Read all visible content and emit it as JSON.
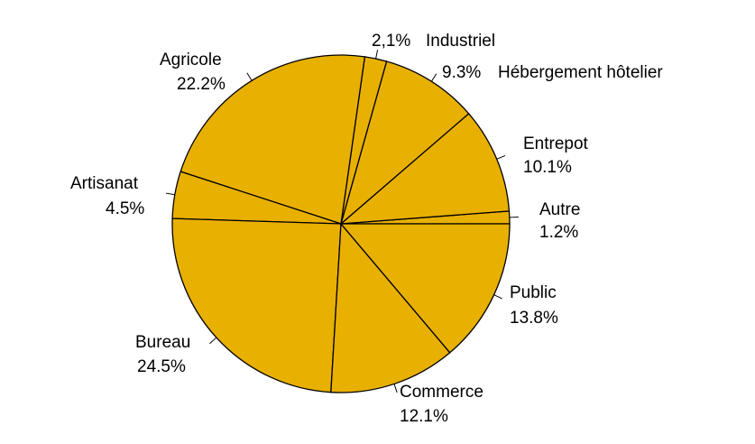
{
  "chart_data": {
    "type": "pie",
    "colors": {
      "slice": "#e8b000",
      "stroke": "#000000",
      "background": "#ffffff"
    },
    "slices": [
      {
        "label": "Autre",
        "value_text": "1.2%",
        "value": 1.2
      },
      {
        "label": "Entrepot",
        "value_text": "10.1%",
        "value": 10.1
      },
      {
        "label": "Hébergement hôtelier",
        "value_text": "9.3%",
        "value": 9.3
      },
      {
        "label": "Industriel",
        "value_text": "2,1%",
        "value": 2.1
      },
      {
        "label": "Agricole",
        "value_text": "22.2%",
        "value": 22.2
      },
      {
        "label": "Artisanat",
        "value_text": "4.5%",
        "value": 4.5
      },
      {
        "label": "Bureau",
        "value_text": "24.5%",
        "value": 24.5
      },
      {
        "label": "Commerce",
        "value_text": "12.1%",
        "value": 12.1
      },
      {
        "label": "Public",
        "value_text": "13.8%",
        "value": 13.8
      }
    ]
  }
}
